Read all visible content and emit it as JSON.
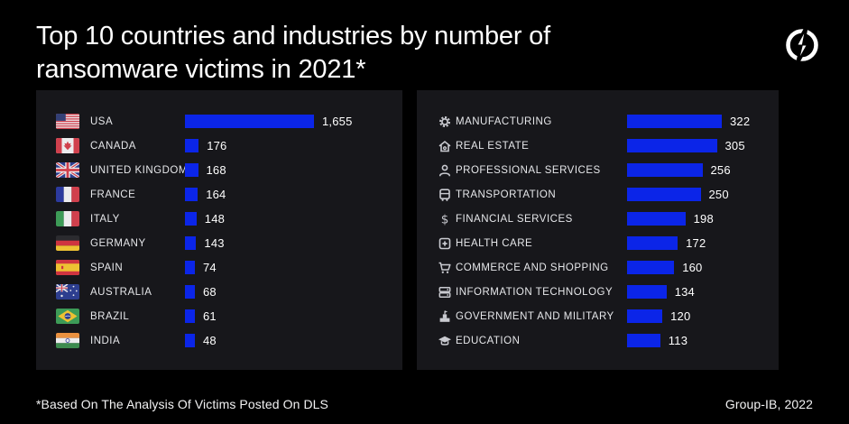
{
  "header": {
    "title": "Top 10 countries and industries by number of ransomware victims in 2021*",
    "logo": "group-ib-logo-icon"
  },
  "footer": {
    "note": "*Based On The Analysis Of Victims Posted On DLS",
    "credit": "Group-IB, 2022"
  },
  "colors": {
    "background": "#000000",
    "panel": "#17171b",
    "bar": "#0b25e8",
    "label": "#e6e7ea",
    "value": "#ffffff",
    "icon": "#c9cad0"
  },
  "chart_data": [
    {
      "type": "bar",
      "name": "countries",
      "orientation": "horizontal",
      "legend": false,
      "categories": [
        "USA",
        "CANADA",
        "UNITED KINGDOM",
        "FRANCE",
        "ITALY",
        "GERMANY",
        "SPAIN",
        "AUSTRALIA",
        "BRAZIL",
        "INDIA"
      ],
      "values": [
        1655,
        176,
        168,
        164,
        148,
        143,
        74,
        68,
        61,
        48
      ],
      "value_labels": [
        "1,655",
        "176",
        "168",
        "164",
        "148",
        "143",
        "74",
        "68",
        "61",
        "48"
      ],
      "icons": [
        "usa-flag-icon",
        "canada-flag-icon",
        "uk-flag-icon",
        "france-flag-icon",
        "italy-flag-icon",
        "germany-flag-icon",
        "spain-flag-icon",
        "australia-flag-icon",
        "brazil-flag-icon",
        "india-flag-icon"
      ],
      "xlim": [
        0,
        1655
      ]
    },
    {
      "type": "bar",
      "name": "industries",
      "orientation": "horizontal",
      "legend": false,
      "categories": [
        "MANUFACTURING",
        "REAL ESTATE",
        "PROFESSIONAL SERVICES",
        "TRANSPORTATION",
        "FINANCIAL SERVICES",
        "HEALTH CARE",
        "COMMERCE AND SHOPPING",
        "INFORMATION TECHNOLOGY",
        "GOVERNMENT AND MILITARY",
        "EDUCATION"
      ],
      "values": [
        322,
        305,
        256,
        250,
        198,
        172,
        160,
        134,
        120,
        113
      ],
      "value_labels": [
        "322",
        "305",
        "256",
        "250",
        "198",
        "172",
        "160",
        "134",
        "120",
        "113"
      ],
      "icons": [
        "gear-icon",
        "real-estate-building-icon",
        "professional-services-person-icon",
        "transportation-bus-icon",
        "dollar-icon",
        "health-cross-icon",
        "shopping-cart-icon",
        "server-stack-icon",
        "government-building-icon",
        "graduation-cap-icon"
      ],
      "xlim": [
        0,
        322
      ]
    }
  ]
}
